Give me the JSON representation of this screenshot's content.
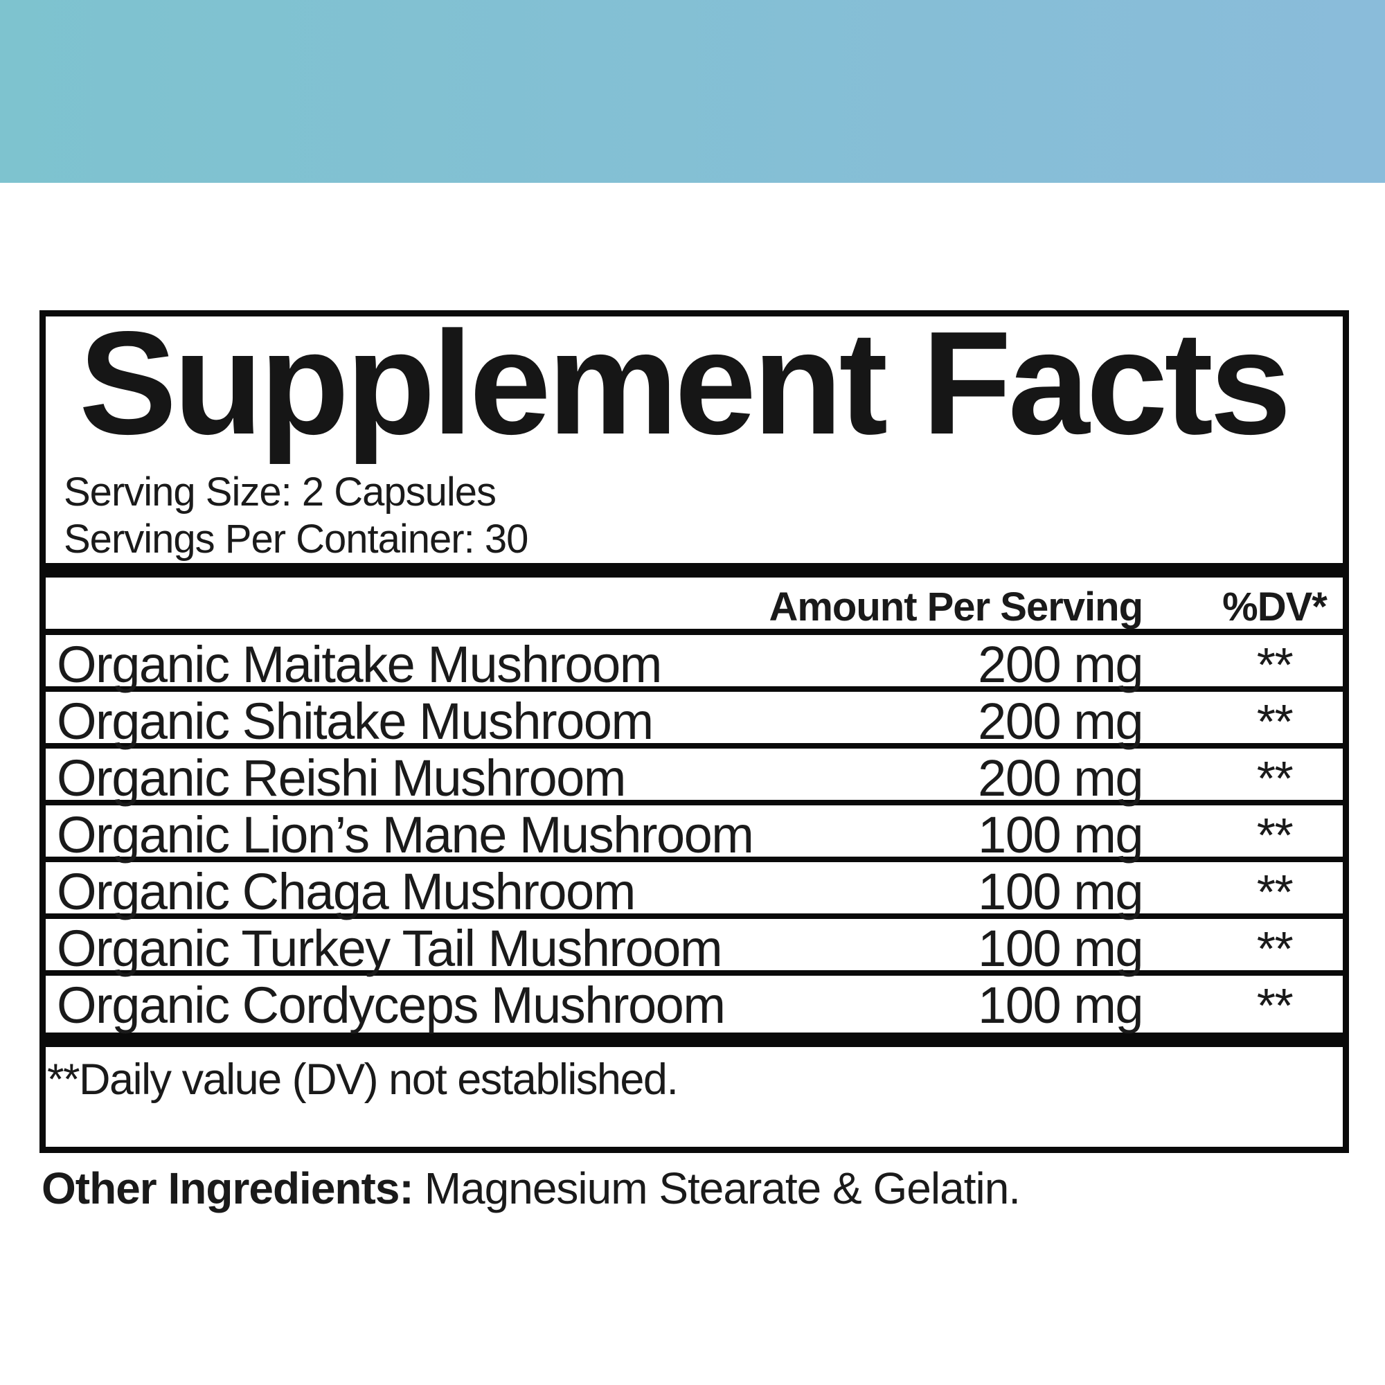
{
  "colors": {
    "band_left": "#7ec3cf",
    "band_right": "#8abcda",
    "ink": "#1a1a1a",
    "bar": "#0a0a0a",
    "panel_bg": "#ffffff",
    "page_bg": "#ffffff"
  },
  "panel": {
    "title": "Supplement Facts",
    "serving_size": "Serving Size: 2 Capsules",
    "servings_per_container": "Servings Per Container: 30",
    "table": {
      "amount_header": "Amount Per Serving",
      "dv_header": "%DV*",
      "rows": [
        {
          "name": "Organic Maitake Mushroom",
          "amount": "200 mg",
          "dv": "**"
        },
        {
          "name": "Organic Shitake Mushroom",
          "amount": "200 mg",
          "dv": "**"
        },
        {
          "name": "Organic Reishi Mushroom",
          "amount": "200 mg",
          "dv": "**"
        },
        {
          "name": "Organic Lion’s Mane Mushroom",
          "amount": "100 mg",
          "dv": "**"
        },
        {
          "name": "Organic Chaga Mushroom",
          "amount": "100 mg",
          "dv": "**"
        },
        {
          "name": "Organic Turkey Tail Mushroom",
          "amount": "100 mg",
          "dv": "**"
        },
        {
          "name": "Organic Cordyceps Mushroom",
          "amount": "100 mg",
          "dv": "**"
        }
      ],
      "footnote": "**Daily value (DV) not established."
    }
  },
  "other_ingredients": {
    "label": "Other Ingredients:",
    "value": "Magnesium Stearate & Gelatin."
  }
}
